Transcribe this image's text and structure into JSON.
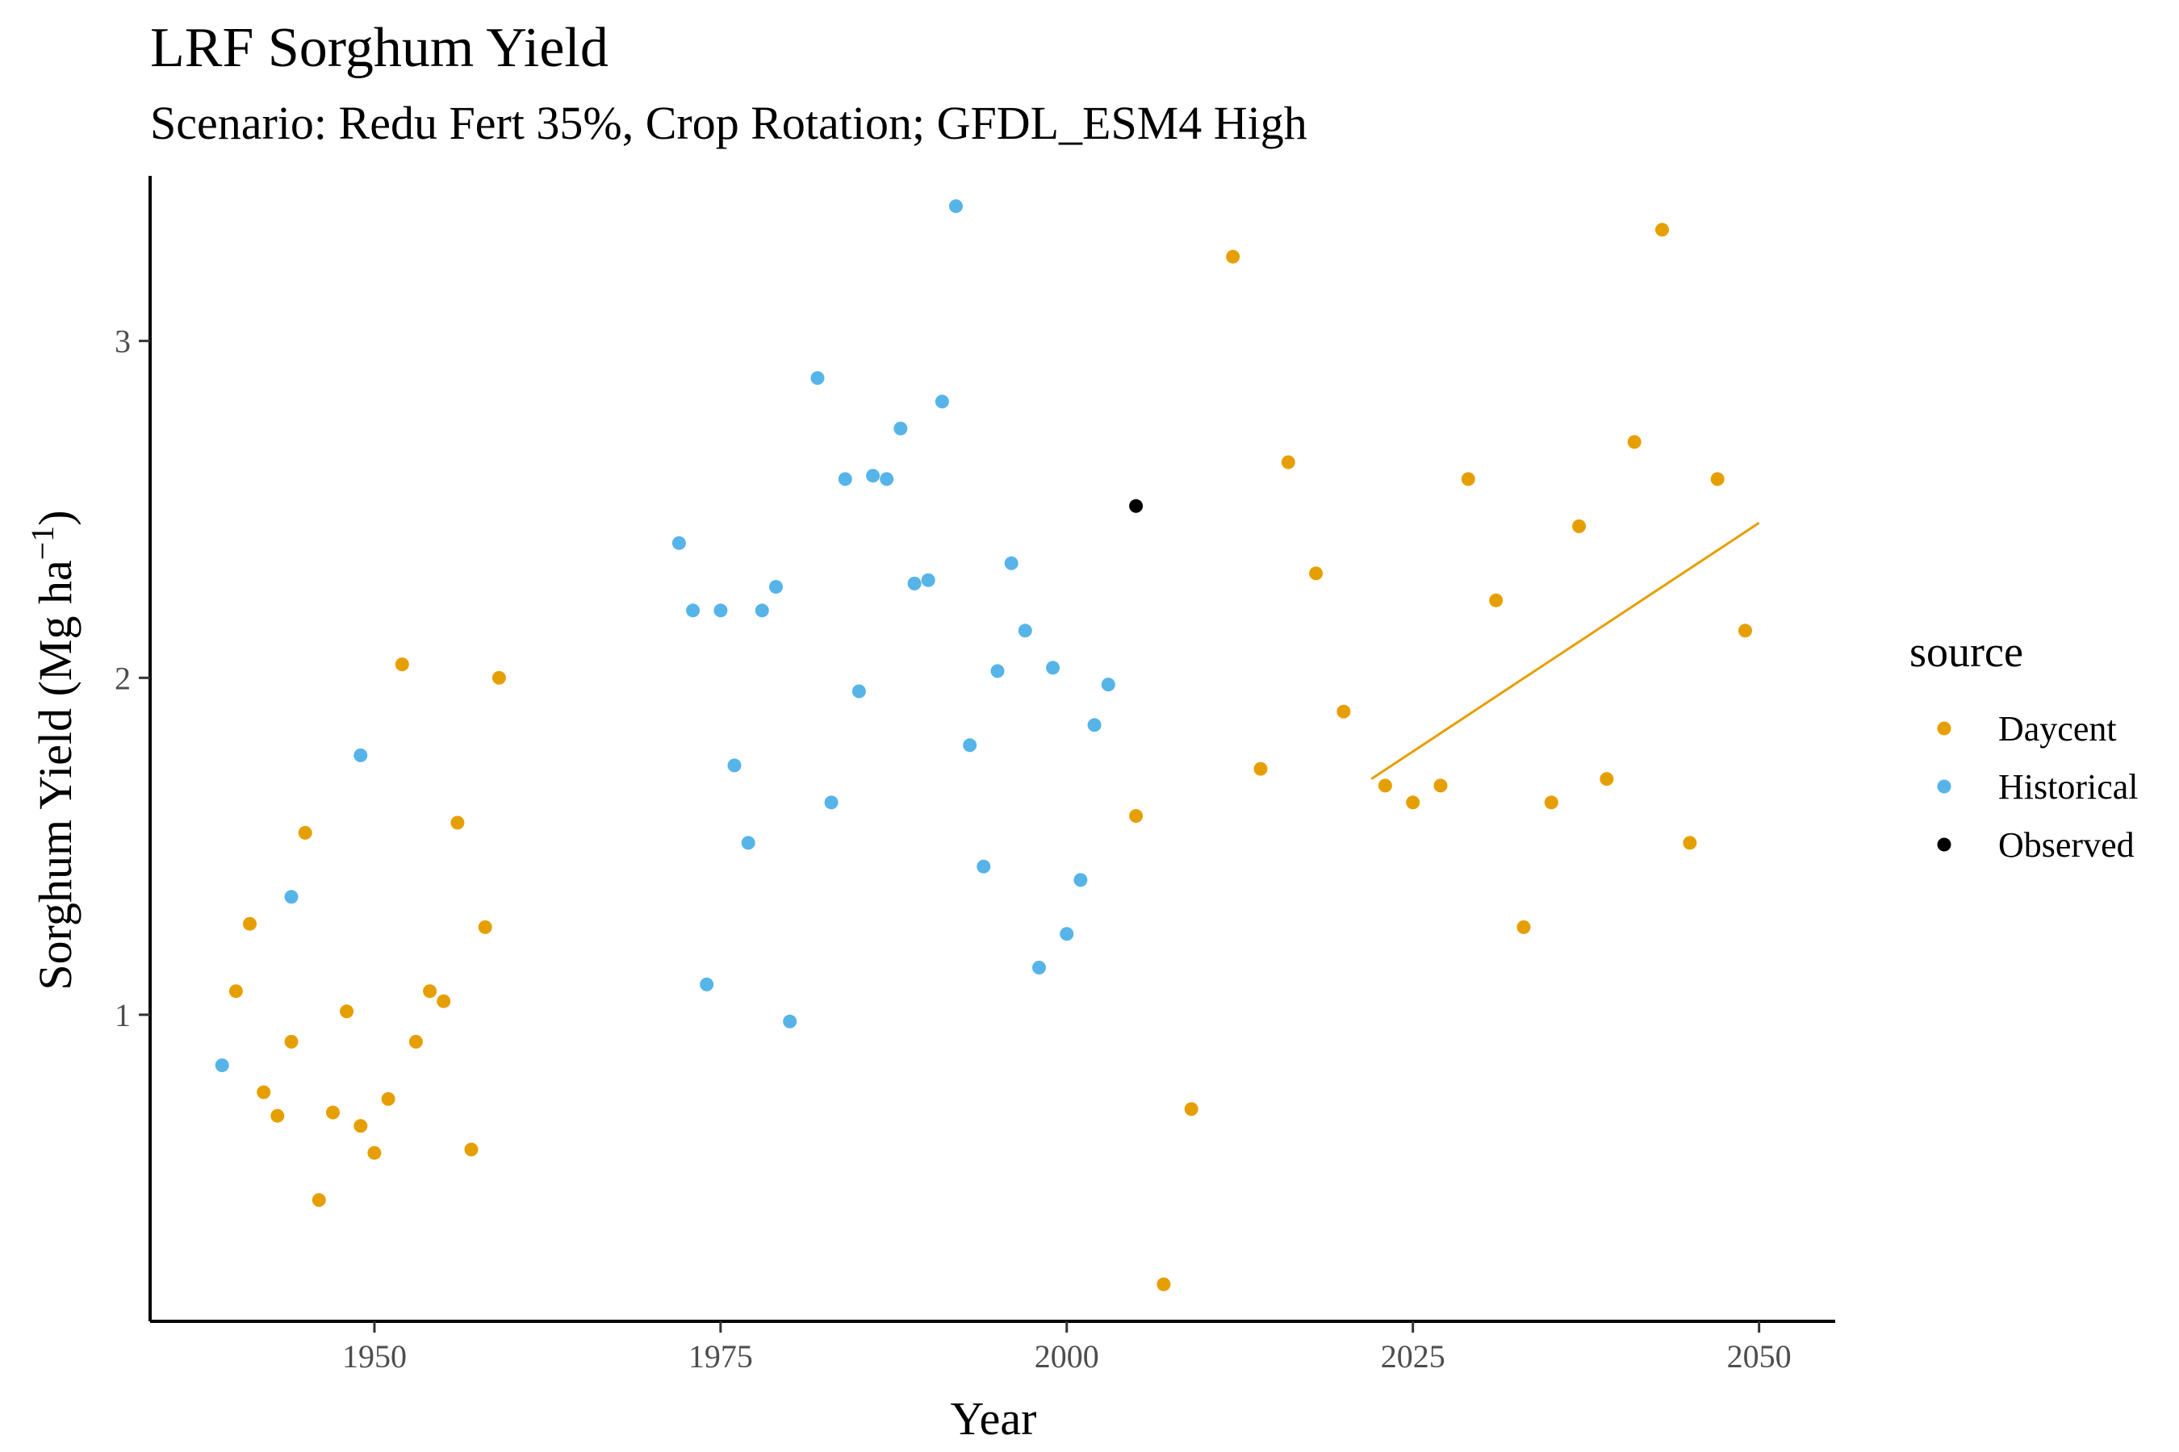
{
  "chart_data": {
    "type": "scatter",
    "title": "LRF Sorghum Yield",
    "subtitle": "Scenario: Redu Fert 35%, Crop Rotation; GFDL_ESM4 High",
    "xlabel": "Year",
    "ylabel": "Sorghum Yield (Mg ha",
    "ylabel_unit_exp": "−1",
    "ylabel_close": ")",
    "xlim": [
      1933.8,
      2055.5
    ],
    "ylim": [
      0.09,
      3.49
    ],
    "x_ticks": [
      1950,
      1975,
      2000,
      2025,
      2050
    ],
    "y_ticks": [
      1,
      2,
      3
    ],
    "grid": false,
    "legend": {
      "title": "source",
      "position": "right"
    },
    "series": [
      {
        "name": "Daycent",
        "color": "#E69F00",
        "x": [
          1940,
          1941,
          1942,
          1943,
          1944,
          1945,
          1946,
          1947,
          1948,
          1949,
          1950,
          1951,
          1952,
          1953,
          1954,
          1955,
          1956,
          1957,
          1958,
          1959,
          2005,
          2007,
          2009,
          2012,
          2014,
          2016,
          2018,
          2020,
          2023,
          2025,
          2027,
          2029,
          2031,
          2033,
          2035,
          2037,
          2039,
          2041,
          2043,
          2045,
          2047,
          2049
        ],
        "y": [
          1.07,
          1.27,
          0.77,
          0.7,
          0.92,
          1.54,
          0.45,
          0.71,
          1.01,
          0.67,
          0.59,
          0.75,
          2.04,
          0.92,
          1.07,
          1.04,
          1.57,
          0.6,
          1.26,
          2.0,
          1.59,
          0.2,
          0.72,
          3.25,
          1.73,
          2.64,
          2.31,
          1.9,
          1.68,
          1.63,
          1.68,
          2.59,
          2.23,
          1.26,
          1.63,
          2.45,
          1.7,
          2.7,
          3.33,
          1.51,
          2.59,
          2.14
        ]
      },
      {
        "name": "Historical",
        "color": "#56B4E9",
        "x": [
          1939,
          1944,
          1949,
          1972,
          1973,
          1974,
          1975,
          1976,
          1977,
          1978,
          1979,
          1980,
          1982,
          1983,
          1984,
          1985,
          1986,
          1987,
          1988,
          1989,
          1990,
          1991,
          1992,
          1993,
          1994,
          1995,
          1996,
          1997,
          1998,
          1999,
          2000,
          2001,
          2002,
          2003
        ],
        "y": [
          0.85,
          1.35,
          1.77,
          2.4,
          2.2,
          1.09,
          2.2,
          1.74,
          1.51,
          2.2,
          2.27,
          0.98,
          2.89,
          1.63,
          2.59,
          1.96,
          2.6,
          2.59,
          2.74,
          2.28,
          2.29,
          2.82,
          3.4,
          1.8,
          1.44,
          2.02,
          2.34,
          2.14,
          1.14,
          2.03,
          1.24,
          1.4,
          1.86,
          1.98
        ]
      },
      {
        "name": "Observed",
        "color": "#000000",
        "x": [
          2005
        ],
        "y": [
          2.51
        ]
      }
    ],
    "trend_line": {
      "series": "Daycent",
      "color": "#E69F00",
      "x": [
        2022,
        2050
      ],
      "y": [
        1.7,
        2.46
      ]
    }
  }
}
